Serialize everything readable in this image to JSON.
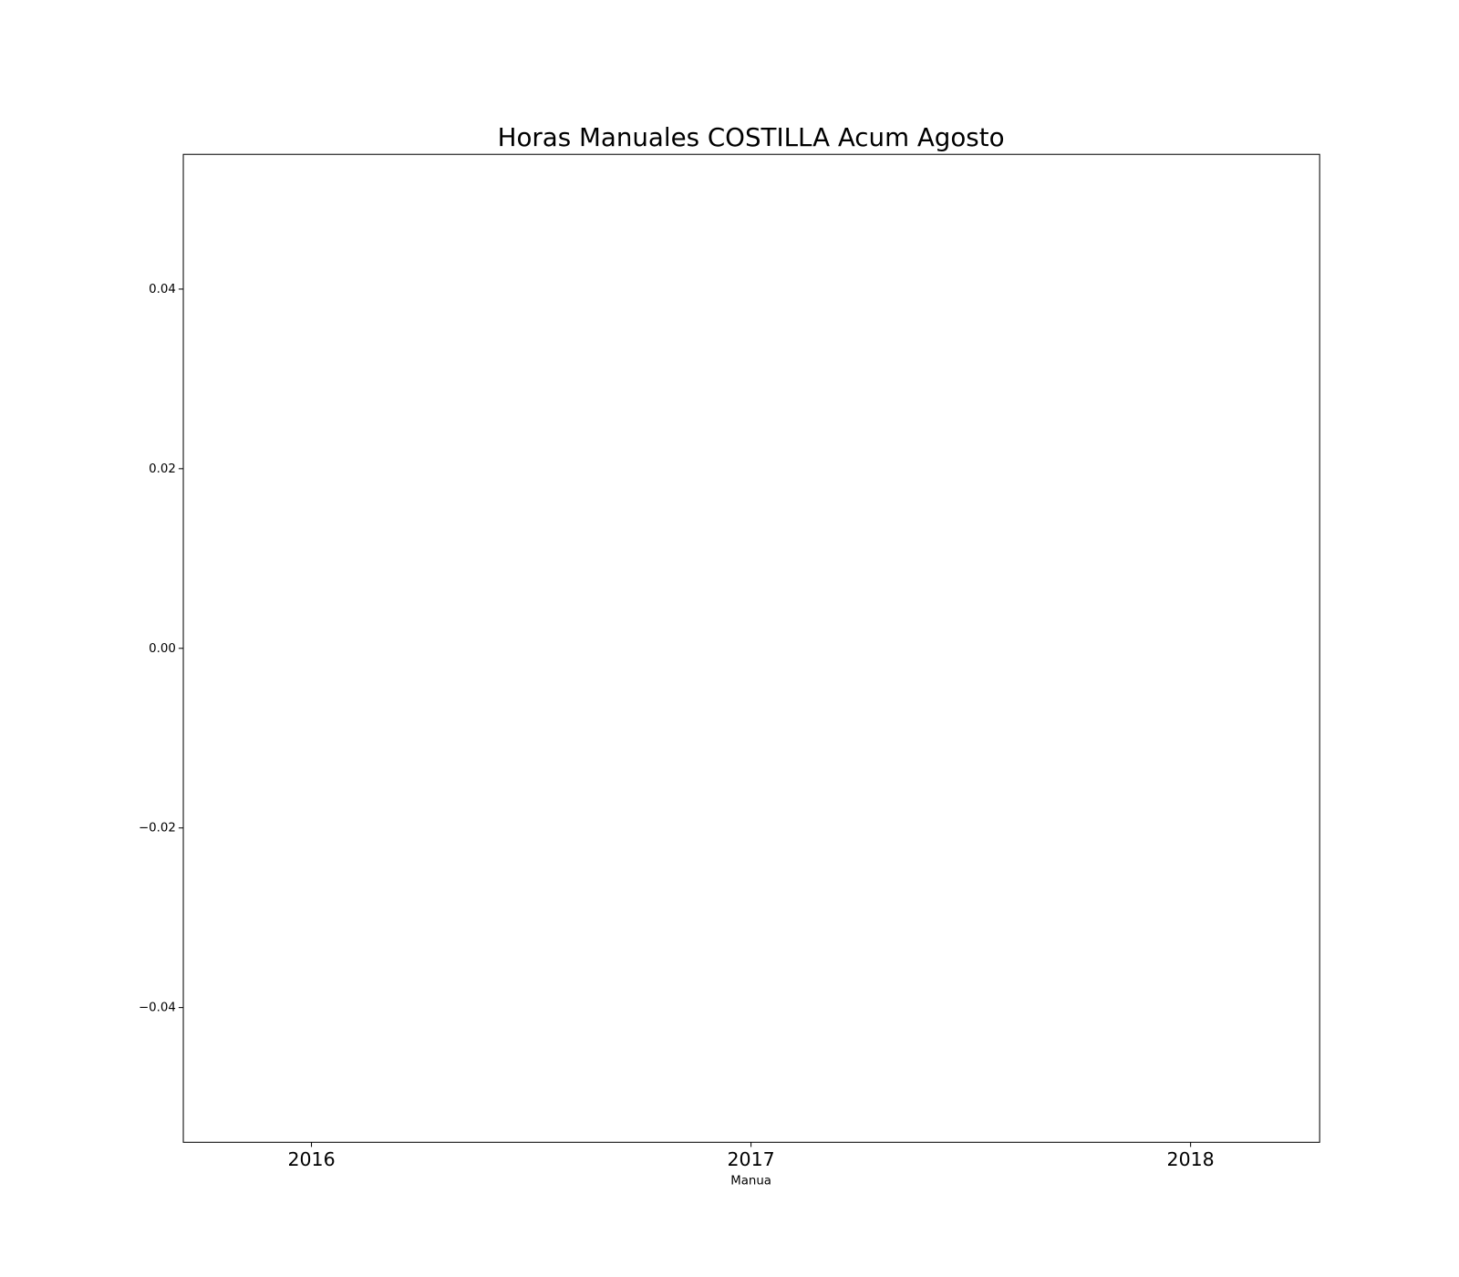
{
  "chart_data": {
    "type": "bar",
    "title": "Horas Manuales COSTILLA Acum Agosto",
    "x_label": "Manua",
    "categories": [
      "2016",
      "2017",
      "2018"
    ],
    "values": [
      0,
      0,
      0
    ],
    "color": "#1f77b4",
    "ylim": [
      -0.055,
      0.055
    ],
    "yticks": [
      {
        "value": -0.04,
        "label": "−0.04"
      },
      {
        "value": -0.02,
        "label": "−0.02"
      },
      {
        "value": 0,
        "label": "0.00"
      },
      0.02,
      0.04
    ]
  }
}
